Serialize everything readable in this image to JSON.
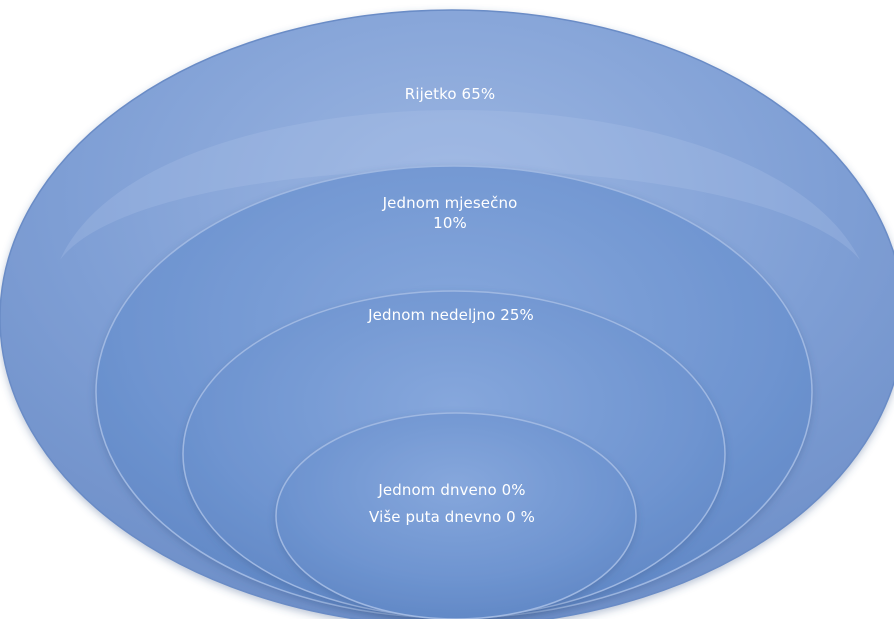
{
  "diagram": {
    "colors": {
      "outer": "#7ea0d6",
      "ring": "#6b92cf",
      "edge": "#5a7fbd",
      "highlight": "#a9c1e6"
    },
    "rings": [
      {
        "text": "Rijetko 65%"
      },
      {
        "text_lines": [
          "Jednom mjesečno",
          "10%"
        ]
      },
      {
        "text": "Jednom nedeljno 25%"
      },
      {
        "text_lines": [
          "Jednom dnveno 0%",
          "Više puta dnevno 0 %"
        ]
      }
    ]
  }
}
